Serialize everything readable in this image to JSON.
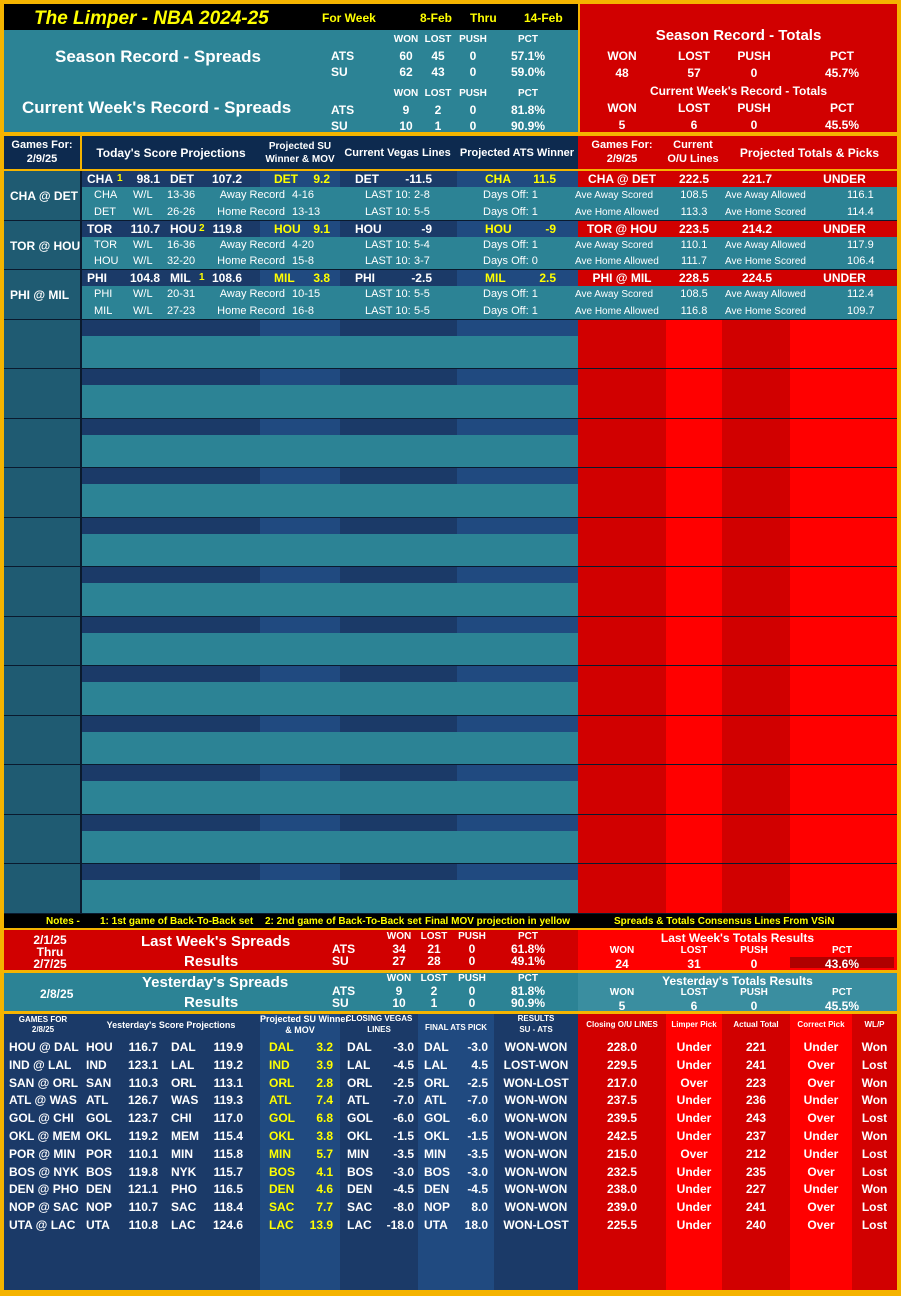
{
  "header": {
    "title": "The Limper - NBA 2024-25",
    "for_week": "For Week",
    "week_start": "8-Feb",
    "thru": "Thru",
    "week_end": "14-Feb"
  },
  "season_spreads": {
    "title": "Season Record - Spreads",
    "cols": [
      "WON",
      "LOST",
      "PUSH",
      "PCT"
    ],
    "rows": [
      {
        "label": "ATS",
        "won": "60",
        "lost": "45",
        "push": "0",
        "pct": "57.1%"
      },
      {
        "label": "SU",
        "won": "62",
        "lost": "43",
        "push": "0",
        "pct": "59.0%"
      }
    ]
  },
  "week_spreads": {
    "title": "Current Week's Record - Spreads",
    "cols": [
      "WON",
      "LOST",
      "PUSH",
      "PCT"
    ],
    "rows": [
      {
        "label": "ATS",
        "won": "9",
        "lost": "2",
        "push": "0",
        "pct": "81.8%"
      },
      {
        "label": "SU",
        "won": "10",
        "lost": "1",
        "push": "0",
        "pct": "90.9%"
      }
    ]
  },
  "season_totals": {
    "title": "Season Record - Totals",
    "cols": [
      "WON",
      "LOST",
      "PUSH",
      "PCT"
    ],
    "won": "48",
    "lost": "57",
    "push": "0",
    "pct": "45.7%"
  },
  "week_totals": {
    "title": "Current Week's Record - Totals",
    "cols": [
      "WON",
      "LOST",
      "PUSH",
      "PCT"
    ],
    "won": "5",
    "lost": "6",
    "push": "0",
    "pct": "45.5%"
  },
  "games_header": {
    "games_for": "Games For:",
    "date": "2/9/25",
    "projections": "Today's Score Projections",
    "su_winner_1": "Projected SU",
    "su_winner_2": "Winner & MOV",
    "vegas": "Current Vegas Lines",
    "ats_winner": "Projected ATS Winner",
    "games_for_r": "Games For:",
    "date_r": "2/9/25",
    "ou_1": "Current",
    "ou_2": "O/U Lines",
    "totals": "Projected Totals & Picks"
  },
  "games": [
    {
      "matchup": "CHA @ DET",
      "away": "CHA",
      "away_b2b": "1",
      "away_score": "98.1",
      "home": "DET",
      "home_b2b": "",
      "home_score": "107.2",
      "su_team": "DET",
      "su_mov": "9.2",
      "vegas_team": "DET",
      "vegas_line": "-11.5",
      "ats_team": "CHA",
      "ats_line": "11.5",
      "tot_matchup": "CHA @ DET",
      "ou_line": "222.5",
      "proj_total": "221.7",
      "pick": "UNDER",
      "rows": [
        {
          "team": "CHA",
          "wl_label": "W/L",
          "wl": "13-36",
          "rec_label": "Away Record",
          "rec": "4-16",
          "last_label": "LAST 10:",
          "last": "2-8",
          "days": "Days Off: 1",
          "ave1_label": "Ave Away Scored",
          "ave1": "108.5",
          "ave2_label": "Ave Away Allowed",
          "ave2": "116.1"
        },
        {
          "team": "DET",
          "wl_label": "W/L",
          "wl": "26-26",
          "rec_label": "Home Record",
          "rec": "13-13",
          "last_label": "LAST 10:",
          "last": "5-5",
          "days": "Days Off: 1",
          "ave1_label": "Ave Home Allowed",
          "ave1": "113.3",
          "ave2_label": "Ave Home Scored",
          "ave2": "114.4"
        }
      ]
    },
    {
      "matchup": "TOR @ HOU",
      "away": "TOR",
      "away_b2b": "",
      "away_score": "110.7",
      "home": "HOU",
      "home_b2b": "2",
      "home_score": "119.8",
      "su_team": "HOU",
      "su_mov": "9.1",
      "vegas_team": "HOU",
      "vegas_line": "-9",
      "ats_team": "HOU",
      "ats_line": "-9",
      "tot_matchup": "TOR @ HOU",
      "ou_line": "223.5",
      "proj_total": "214.2",
      "pick": "UNDER",
      "rows": [
        {
          "team": "TOR",
          "wl_label": "W/L",
          "wl": "16-36",
          "rec_label": "Away Record",
          "rec": "4-20",
          "last_label": "LAST 10:",
          "last": "5-4",
          "days": "Days Off: 1",
          "ave1_label": "Ave Away Scored",
          "ave1": "110.1",
          "ave2_label": "Ave Away Allowed",
          "ave2": "117.9"
        },
        {
          "team": "HOU",
          "wl_label": "W/L",
          "wl": "32-20",
          "rec_label": "Home Record",
          "rec": "15-8",
          "last_label": "LAST 10:",
          "last": "3-7",
          "days": "Days Off: 0",
          "ave1_label": "Ave Home Allowed",
          "ave1": "111.7",
          "ave2_label": "Ave Home Scored",
          "ave2": "106.4"
        }
      ]
    },
    {
      "matchup": "PHI @ MIL",
      "away": "PHI",
      "away_b2b": "",
      "away_score": "104.8",
      "home": "MIL",
      "home_b2b": "1",
      "home_score": "108.6",
      "su_team": "MIL",
      "su_mov": "3.8",
      "vegas_team": "PHI",
      "vegas_line": "-2.5",
      "ats_team": "MIL",
      "ats_line": "2.5",
      "tot_matchup": "PHI @ MIL",
      "ou_line": "228.5",
      "proj_total": "224.5",
      "pick": "UNDER",
      "rows": [
        {
          "team": "PHI",
          "wl_label": "W/L",
          "wl": "20-31",
          "rec_label": "Away Record",
          "rec": "10-15",
          "last_label": "LAST 10:",
          "last": "5-5",
          "days": "Days Off: 1",
          "ave1_label": "Ave Away Scored",
          "ave1": "108.5",
          "ave2_label": "Ave Away Allowed",
          "ave2": "112.4"
        },
        {
          "team": "MIL",
          "wl_label": "W/L",
          "wl": "27-23",
          "rec_label": "Home Record",
          "rec": "16-8",
          "last_label": "LAST 10:",
          "last": "5-5",
          "days": "Days Off: 1",
          "ave1_label": "Ave Home Allowed",
          "ave1": "116.8",
          "ave2_label": "Ave Home Scored",
          "ave2": "109.7"
        }
      ]
    }
  ],
  "notes": {
    "label": "Notes -",
    "n1": "1: 1st game of Back-To-Back set",
    "n2": "2: 2nd game of Back-To-Back set",
    "n3": "Final MOV projection in yellow",
    "n4": "Spreads & Totals Consensus Lines From VSiN"
  },
  "last_week": {
    "date1": "2/1/25",
    "thru": "Thru",
    "date2": "2/7/25",
    "title1": "Last Week's Spreads",
    "title2": "Results",
    "cols": [
      "WON",
      "LOST",
      "PUSH",
      "PCT"
    ],
    "rows": [
      {
        "label": "ATS",
        "won": "34",
        "lost": "21",
        "push": "0",
        "pct": "61.8%"
      },
      {
        "label": "SU",
        "won": "27",
        "lost": "28",
        "push": "0",
        "pct": "49.1%"
      }
    ],
    "totals_title": "Last Week's Totals Results",
    "totals": {
      "won": "24",
      "lost": "31",
      "push": "0",
      "pct": "43.6%"
    }
  },
  "yesterday": {
    "date": "2/8/25",
    "title1": "Yesterday's Spreads",
    "title2": "Results",
    "cols": [
      "WON",
      "LOST",
      "PUSH",
      "PCT"
    ],
    "rows": [
      {
        "label": "ATS",
        "won": "9",
        "lost": "2",
        "push": "0",
        "pct": "81.8%"
      },
      {
        "label": "SU",
        "won": "10",
        "lost": "1",
        "push": "0",
        "pct": "90.9%"
      }
    ],
    "totals_title": "Yesterday's Totals Results",
    "totals": {
      "won": "5",
      "lost": "6",
      "push": "0",
      "pct": "45.5%"
    }
  },
  "results_header": {
    "games_for_1": "GAMES FOR",
    "games_for_2": "2/8/25",
    "proj": "Yesterday's Score Projections",
    "su_1": "Projected SU Winner",
    "su_2": "& MOV",
    "closing_1": "CLOSING VEGAS",
    "closing_2": "LINES",
    "final_ats": "FINAL ATS PICK",
    "results_1": "RESULTS",
    "results_2": "SU - ATS",
    "closing_ou": "Closing O/U LINES",
    "limper_pick": "Limper Pick",
    "actual_total": "Actual Total",
    "correct_pick": "Correct Pick",
    "wlp": "WL/P"
  },
  "results": [
    {
      "m": "HOU @ DAL",
      "a": "HOU",
      "as": "116.7",
      "h": "DAL",
      "hs": "119.9",
      "su": "DAL",
      "mov": "3.2",
      "vt": "DAL",
      "vl": "-3.0",
      "at": "DAL",
      "al": "-3.0",
      "res": "WON-WON",
      "ou": "228.0",
      "lp": "Under",
      "act": "221",
      "cp": "Under",
      "wl": "Won"
    },
    {
      "m": "IND @ LAL",
      "a": "IND",
      "as": "123.1",
      "h": "LAL",
      "hs": "119.2",
      "su": "IND",
      "mov": "3.9",
      "vt": "LAL",
      "vl": "-4.5",
      "at": "LAL",
      "al": "4.5",
      "res": "LOST-WON",
      "ou": "229.5",
      "lp": "Under",
      "act": "241",
      "cp": "Over",
      "wl": "Lost"
    },
    {
      "m": "SAN @ ORL",
      "a": "SAN",
      "as": "110.3",
      "h": "ORL",
      "hs": "113.1",
      "su": "ORL",
      "mov": "2.8",
      "vt": "ORL",
      "vl": "-2.5",
      "at": "ORL",
      "al": "-2.5",
      "res": "WON-LOST",
      "ou": "217.0",
      "lp": "Over",
      "act": "223",
      "cp": "Over",
      "wl": "Won"
    },
    {
      "m": "ATL @ WAS",
      "a": "ATL",
      "as": "126.7",
      "h": "WAS",
      "hs": "119.3",
      "su": "ATL",
      "mov": "7.4",
      "vt": "ATL",
      "vl": "-7.0",
      "at": "ATL",
      "al": "-7.0",
      "res": "WON-WON",
      "ou": "237.5",
      "lp": "Under",
      "act": "236",
      "cp": "Under",
      "wl": "Won"
    },
    {
      "m": "GOL @ CHI",
      "a": "GOL",
      "as": "123.7",
      "h": "CHI",
      "hs": "117.0",
      "su": "GOL",
      "mov": "6.8",
      "vt": "GOL",
      "vl": "-6.0",
      "at": "GOL",
      "al": "-6.0",
      "res": "WON-WON",
      "ou": "239.5",
      "lp": "Under",
      "act": "243",
      "cp": "Over",
      "wl": "Lost"
    },
    {
      "m": "OKL @ MEM",
      "a": "OKL",
      "as": "119.2",
      "h": "MEM",
      "hs": "115.4",
      "su": "OKL",
      "mov": "3.8",
      "vt": "OKL",
      "vl": "-1.5",
      "at": "OKL",
      "al": "-1.5",
      "res": "WON-WON",
      "ou": "242.5",
      "lp": "Under",
      "act": "237",
      "cp": "Under",
      "wl": "Won"
    },
    {
      "m": "POR @ MIN",
      "a": "POR",
      "as": "110.1",
      "h": "MIN",
      "hs": "115.8",
      "su": "MIN",
      "mov": "5.7",
      "vt": "MIN",
      "vl": "-3.5",
      "at": "MIN",
      "al": "-3.5",
      "res": "WON-WON",
      "ou": "215.0",
      "lp": "Over",
      "act": "212",
      "cp": "Under",
      "wl": "Lost"
    },
    {
      "m": "BOS @ NYK",
      "a": "BOS",
      "as": "119.8",
      "h": "NYK",
      "hs": "115.7",
      "su": "BOS",
      "mov": "4.1",
      "vt": "BOS",
      "vl": "-3.0",
      "at": "BOS",
      "al": "-3.0",
      "res": "WON-WON",
      "ou": "232.5",
      "lp": "Under",
      "act": "235",
      "cp": "Over",
      "wl": "Lost"
    },
    {
      "m": "DEN @ PHO",
      "a": "DEN",
      "as": "121.1",
      "h": "PHO",
      "hs": "116.5",
      "su": "DEN",
      "mov": "4.6",
      "vt": "DEN",
      "vl": "-4.5",
      "at": "DEN",
      "al": "-4.5",
      "res": "WON-WON",
      "ou": "238.0",
      "lp": "Under",
      "act": "227",
      "cp": "Under",
      "wl": "Won"
    },
    {
      "m": "NOP @ SAC",
      "a": "NOP",
      "as": "110.7",
      "h": "SAC",
      "hs": "118.4",
      "su": "SAC",
      "mov": "7.7",
      "vt": "SAC",
      "vl": "-8.0",
      "at": "NOP",
      "al": "8.0",
      "res": "WON-WON",
      "ou": "239.0",
      "lp": "Under",
      "act": "241",
      "cp": "Over",
      "wl": "Lost"
    },
    {
      "m": "UTA @ LAC",
      "a": "UTA",
      "as": "110.8",
      "h": "LAC",
      "hs": "124.6",
      "su": "LAC",
      "mov": "13.9",
      "vt": "LAC",
      "vl": "-18.0",
      "at": "UTA",
      "al": "18.0",
      "res": "WON-LOST",
      "ou": "225.5",
      "lp": "Under",
      "act": "240",
      "cp": "Over",
      "wl": "Lost"
    }
  ]
}
